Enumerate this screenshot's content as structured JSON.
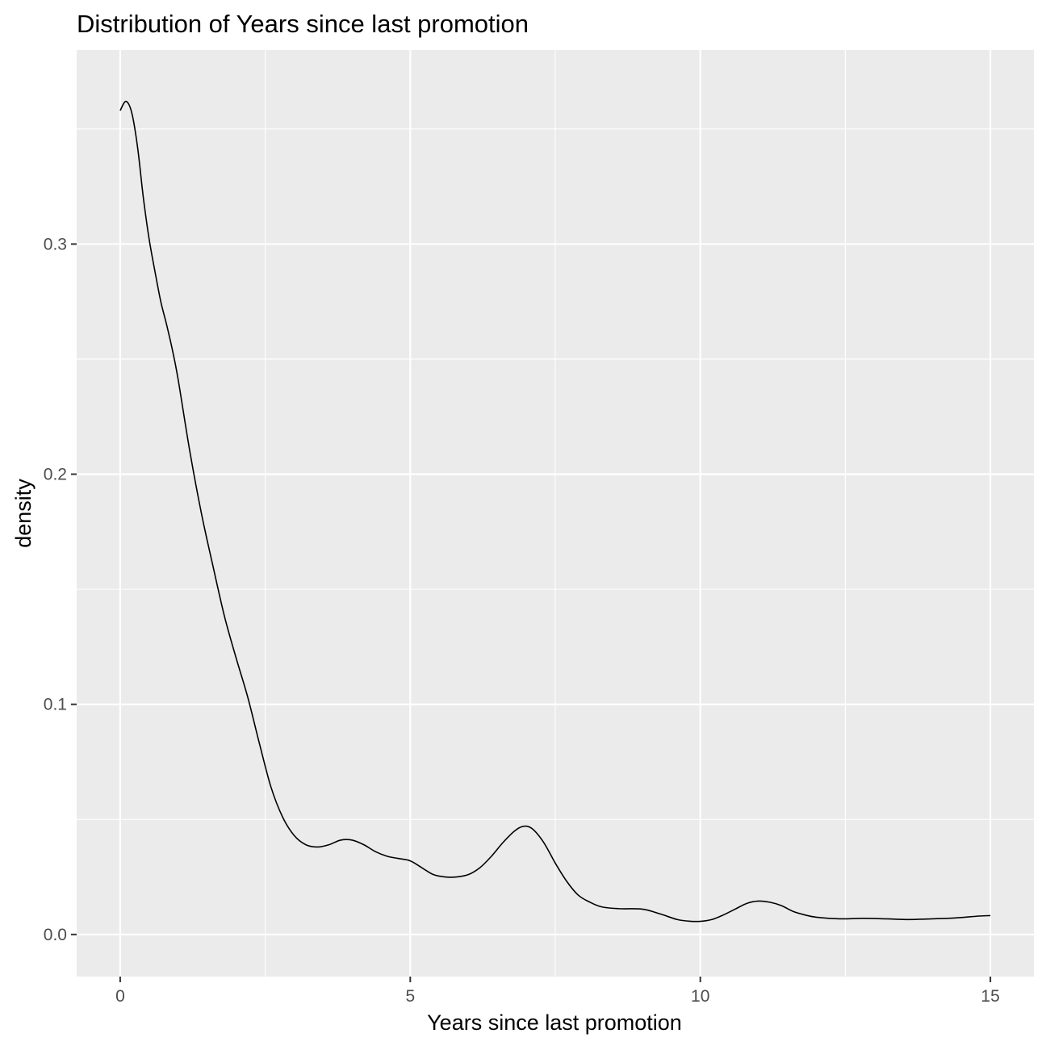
{
  "chart_data": {
    "type": "line",
    "title": "Distribution of Years since last promotion",
    "xlabel": "Years since last promotion",
    "ylabel": "density",
    "xlim": [
      -0.75,
      15.75
    ],
    "ylim": [
      -0.0183,
      0.3843
    ],
    "x_ticks": [
      0,
      5,
      10,
      15
    ],
    "x_tick_labels": [
      "0",
      "5",
      "10",
      "15"
    ],
    "y_ticks": [
      0.0,
      0.1,
      0.2,
      0.3
    ],
    "y_tick_labels": [
      "0.0",
      "0.1",
      "0.2",
      "0.3"
    ],
    "grid": true,
    "legend": "none",
    "series": [
      {
        "x": [
          0,
          0.1,
          0.2,
          0.3,
          0.4,
          0.5,
          0.6,
          0.7,
          0.8,
          0.9,
          1.0,
          1.2,
          1.4,
          1.6,
          1.8,
          2.0,
          2.2,
          2.4,
          2.6,
          2.8,
          3.0,
          3.2,
          3.4,
          3.6,
          3.8,
          4.0,
          4.2,
          4.4,
          4.6,
          4.8,
          5.0,
          5.2,
          5.4,
          5.6,
          5.8,
          6.0,
          6.2,
          6.4,
          6.6,
          6.8,
          6.95,
          7.1,
          7.3,
          7.5,
          7.7,
          7.9,
          8.1,
          8.3,
          8.6,
          9.0,
          9.3,
          9.6,
          9.8,
          10.0,
          10.2,
          10.4,
          10.6,
          10.8,
          11.0,
          11.2,
          11.4,
          11.6,
          11.8,
          12.0,
          12.4,
          12.8,
          13.2,
          13.6,
          14.0,
          14.4,
          14.8,
          15.0
        ],
        "y": [
          0.358,
          0.362,
          0.357,
          0.342,
          0.32,
          0.302,
          0.288,
          0.275,
          0.265,
          0.254,
          0.241,
          0.21,
          0.183,
          0.16,
          0.138,
          0.12,
          0.103,
          0.083,
          0.064,
          0.051,
          0.043,
          0.039,
          0.038,
          0.039,
          0.041,
          0.041,
          0.039,
          0.036,
          0.034,
          0.033,
          0.032,
          0.029,
          0.026,
          0.025,
          0.025,
          0.026,
          0.029,
          0.034,
          0.04,
          0.045,
          0.047,
          0.046,
          0.04,
          0.031,
          0.023,
          0.017,
          0.014,
          0.012,
          0.0112,
          0.011,
          0.009,
          0.0065,
          0.0058,
          0.0057,
          0.0065,
          0.0085,
          0.011,
          0.0135,
          0.0145,
          0.014,
          0.0125,
          0.01,
          0.0085,
          0.0075,
          0.0068,
          0.007,
          0.0068,
          0.0065,
          0.0068,
          0.0072,
          0.008,
          0.0082
        ]
      }
    ]
  }
}
